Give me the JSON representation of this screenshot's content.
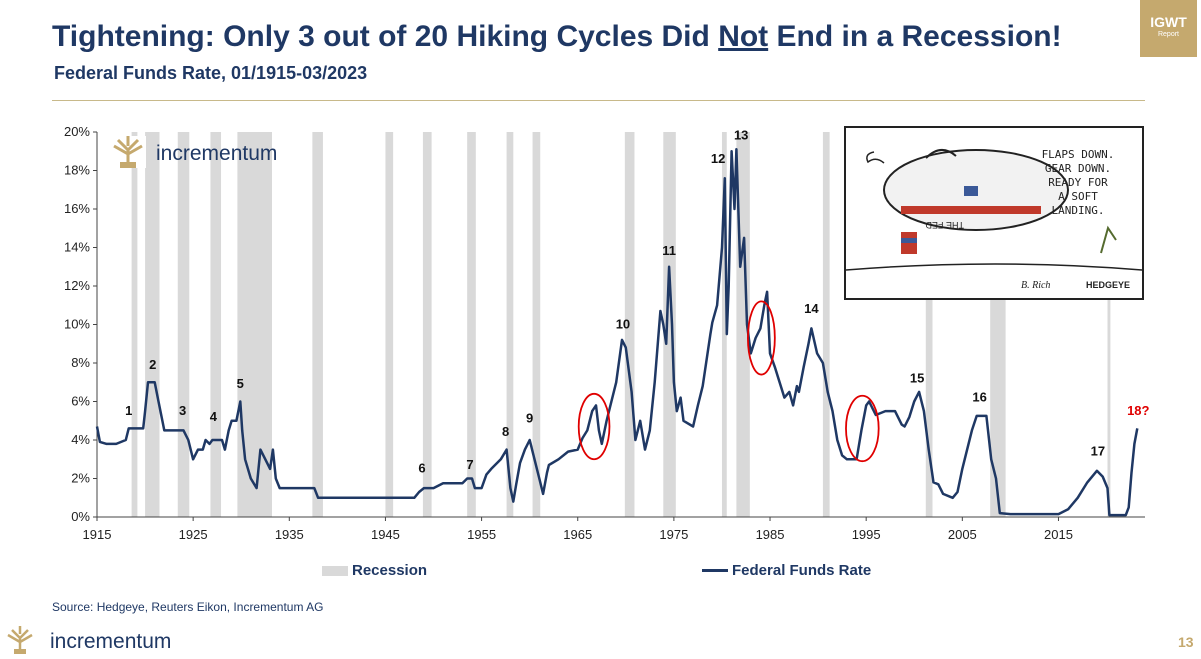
{
  "header": {
    "title_pre": "Tightening: Only 3 out of 20 Hiking Cycles Did ",
    "title_underlined": "Not",
    "title_post": " End in a Recession!",
    "subtitle": "Federal Funds Rate, 01/1915-03/2023"
  },
  "badge": {
    "line1": "IGWT",
    "line2": "Report"
  },
  "source": "Source: Hedgeye, Reuters Eikon, Incrementum AG",
  "brand": {
    "name": "incrementum",
    "chart_logo_text": "incrementum"
  },
  "page_number": "13",
  "colors": {
    "line": "#1f3864",
    "recession": "#d9d9d9",
    "highlight_circle": "#e00000",
    "accent": "#c5a96e",
    "label_red": "#e00000"
  },
  "cartoon": {
    "speech": [
      "FLAPS DOWN.",
      "GEAR DOWN.",
      "READY FOR",
      "A SOFT",
      "LANDING."
    ],
    "plane_text": "THE FED",
    "signature": "B. Rich",
    "credit": "HEDGEYE"
  },
  "chart_data": {
    "type": "line",
    "title": "Federal Funds Rate, 01/1915-03/2023",
    "xlabel": "",
    "ylabel": "",
    "xlim": [
      1915,
      2024
    ],
    "ylim": [
      0,
      20
    ],
    "x_ticks": [
      1915,
      1925,
      1935,
      1945,
      1955,
      1965,
      1975,
      1985,
      1995,
      2005,
      2015
    ],
    "y_ticks": [
      "0%",
      "2%",
      "4%",
      "6%",
      "8%",
      "10%",
      "12%",
      "14%",
      "16%",
      "18%",
      "20%"
    ],
    "legend": [
      "Recession",
      "Federal Funds Rate"
    ],
    "legend_position": "bottom",
    "grid": false,
    "series": [
      {
        "name": "Federal Funds Rate",
        "points": [
          [
            1915.0,
            4.7
          ],
          [
            1915.3,
            3.9
          ],
          [
            1916,
            3.8
          ],
          [
            1917,
            3.8
          ],
          [
            1918,
            4.0
          ],
          [
            1918.3,
            4.6
          ],
          [
            1919,
            4.6
          ],
          [
            1919.8,
            4.6
          ],
          [
            1920,
            5.5
          ],
          [
            1920.3,
            7.0
          ],
          [
            1921,
            7.0
          ],
          [
            1921.4,
            6.0
          ],
          [
            1922,
            4.5
          ],
          [
            1923,
            4.5
          ],
          [
            1924,
            4.5
          ],
          [
            1924.5,
            4.0
          ],
          [
            1925,
            3.0
          ],
          [
            1925.5,
            3.5
          ],
          [
            1926,
            3.5
          ],
          [
            1926.3,
            4.0
          ],
          [
            1926.7,
            3.8
          ],
          [
            1927,
            4.0
          ],
          [
            1928,
            4.0
          ],
          [
            1928.3,
            3.5
          ],
          [
            1928.7,
            4.5
          ],
          [
            1929,
            5.0
          ],
          [
            1929.5,
            5.0
          ],
          [
            1929.9,
            6.0
          ],
          [
            1930.1,
            4.5
          ],
          [
            1930.4,
            3.0
          ],
          [
            1931,
            2.0
          ],
          [
            1931.6,
            1.5
          ],
          [
            1932,
            3.5
          ],
          [
            1932.5,
            3.0
          ],
          [
            1933,
            2.5
          ],
          [
            1933.3,
            3.5
          ],
          [
            1933.6,
            2.0
          ],
          [
            1934,
            1.5
          ],
          [
            1936,
            1.5
          ],
          [
            1937.6,
            1.5
          ],
          [
            1938,
            1.0
          ],
          [
            1948,
            1.0
          ],
          [
            1948.5,
            1.3
          ],
          [
            1949,
            1.5
          ],
          [
            1950,
            1.5
          ],
          [
            1951,
            1.75
          ],
          [
            1953,
            1.75
          ],
          [
            1953.5,
            2.0
          ],
          [
            1954,
            2.0
          ],
          [
            1954.3,
            1.5
          ],
          [
            1955,
            1.5
          ],
          [
            1955.5,
            2.2
          ],
          [
            1956,
            2.5
          ],
          [
            1957,
            3.0
          ],
          [
            1957.6,
            3.5
          ],
          [
            1958,
            1.5
          ],
          [
            1958.3,
            0.8
          ],
          [
            1958.6,
            1.7
          ],
          [
            1959,
            2.8
          ],
          [
            1959.5,
            3.5
          ],
          [
            1960,
            4.0
          ],
          [
            1960.5,
            3.0
          ],
          [
            1961,
            2.0
          ],
          [
            1961.4,
            1.2
          ],
          [
            1961.8,
            2.3
          ],
          [
            1962,
            2.7
          ],
          [
            1963,
            3.0
          ],
          [
            1964,
            3.4
          ],
          [
            1965,
            3.5
          ],
          [
            1965.5,
            4.1
          ],
          [
            1966,
            4.5
          ],
          [
            1966.5,
            5.5
          ],
          [
            1966.9,
            5.8
          ],
          [
            1967.2,
            4.5
          ],
          [
            1967.5,
            3.8
          ],
          [
            1968,
            5.0
          ],
          [
            1968.5,
            6.0
          ],
          [
            1969,
            7.0
          ],
          [
            1969.6,
            9.2
          ],
          [
            1970,
            8.8
          ],
          [
            1970.6,
            6.5
          ],
          [
            1971,
            4.0
          ],
          [
            1971.5,
            5.0
          ],
          [
            1972,
            3.5
          ],
          [
            1972.5,
            4.5
          ],
          [
            1973,
            7.0
          ],
          [
            1973.6,
            10.7
          ],
          [
            1973.9,
            10.0
          ],
          [
            1974.2,
            9.0
          ],
          [
            1974.5,
            13.0
          ],
          [
            1974.8,
            10.0
          ],
          [
            1975,
            7.0
          ],
          [
            1975.3,
            5.5
          ],
          [
            1975.7,
            6.2
          ],
          [
            1976,
            5.0
          ],
          [
            1977,
            4.7
          ],
          [
            1977.5,
            5.8
          ],
          [
            1978,
            6.8
          ],
          [
            1978.8,
            9.5
          ],
          [
            1979,
            10.1
          ],
          [
            1979.5,
            11.0
          ],
          [
            1980,
            14.0
          ],
          [
            1980.3,
            17.6
          ],
          [
            1980.5,
            9.5
          ],
          [
            1980.7,
            12.0
          ],
          [
            1981,
            19.0
          ],
          [
            1981.3,
            16.0
          ],
          [
            1981.5,
            19.1
          ],
          [
            1981.9,
            13.0
          ],
          [
            1982.3,
            14.5
          ],
          [
            1982.6,
            10.0
          ],
          [
            1983,
            8.5
          ],
          [
            1983.5,
            9.3
          ],
          [
            1984,
            9.8
          ],
          [
            1984.4,
            11.0
          ],
          [
            1984.7,
            11.7
          ],
          [
            1985,
            8.5
          ],
          [
            1985.5,
            7.8
          ],
          [
            1986,
            7.0
          ],
          [
            1986.5,
            6.2
          ],
          [
            1987,
            6.5
          ],
          [
            1987.4,
            5.8
          ],
          [
            1987.8,
            6.8
          ],
          [
            1988,
            6.5
          ],
          [
            1988.5,
            7.8
          ],
          [
            1989,
            9.0
          ],
          [
            1989.3,
            9.8
          ],
          [
            1989.9,
            8.5
          ],
          [
            1990.5,
            8.0
          ],
          [
            1991,
            6.5
          ],
          [
            1991.5,
            5.5
          ],
          [
            1992,
            4.0
          ],
          [
            1992.5,
            3.2
          ],
          [
            1993,
            3.0
          ],
          [
            1994,
            3.0
          ],
          [
            1994.5,
            4.5
          ],
          [
            1995,
            5.8
          ],
          [
            1995.3,
            6.0
          ],
          [
            1996,
            5.3
          ],
          [
            1997,
            5.5
          ],
          [
            1998,
            5.5
          ],
          [
            1998.7,
            4.8
          ],
          [
            1999,
            4.7
          ],
          [
            1999.5,
            5.2
          ],
          [
            2000,
            6.0
          ],
          [
            2000.5,
            6.5
          ],
          [
            2001,
            5.5
          ],
          [
            2001.5,
            3.5
          ],
          [
            2002,
            1.8
          ],
          [
            2002.5,
            1.7
          ],
          [
            2003,
            1.2
          ],
          [
            2004,
            1.0
          ],
          [
            2004.5,
            1.3
          ],
          [
            2005,
            2.5
          ],
          [
            2006,
            4.5
          ],
          [
            2006.5,
            5.25
          ],
          [
            2007.5,
            5.25
          ],
          [
            2008,
            3.0
          ],
          [
            2008.5,
            2.0
          ],
          [
            2008.9,
            0.2
          ],
          [
            2010,
            0.15
          ],
          [
            2015,
            0.15
          ],
          [
            2016,
            0.4
          ],
          [
            2017,
            1.0
          ],
          [
            2018,
            1.8
          ],
          [
            2019,
            2.4
          ],
          [
            2019.6,
            2.1
          ],
          [
            2020.1,
            1.5
          ],
          [
            2020.3,
            0.1
          ],
          [
            2021.5,
            0.1
          ],
          [
            2022,
            0.1
          ],
          [
            2022.3,
            0.5
          ],
          [
            2022.6,
            2.3
          ],
          [
            2022.9,
            3.8
          ],
          [
            2023.2,
            4.6
          ]
        ]
      }
    ],
    "recessions": [
      [
        1918.6,
        1919.2
      ],
      [
        1920.0,
        1921.5
      ],
      [
        1923.4,
        1924.6
      ],
      [
        1926.8,
        1927.9
      ],
      [
        1929.6,
        1933.2
      ],
      [
        1937.4,
        1938.5
      ],
      [
        1945.0,
        1945.8
      ],
      [
        1948.9,
        1949.8
      ],
      [
        1953.5,
        1954.4
      ],
      [
        1957.6,
        1958.3
      ],
      [
        1960.3,
        1961.1
      ],
      [
        1969.9,
        1970.9
      ],
      [
        1973.9,
        1975.2
      ],
      [
        1980.0,
        1980.5
      ],
      [
        1981.5,
        1982.9
      ],
      [
        1990.5,
        1991.2
      ],
      [
        2001.2,
        2001.9
      ],
      [
        2007.9,
        2009.5
      ],
      [
        2020.1,
        2020.4
      ]
    ],
    "cycle_labels": [
      {
        "label": "1",
        "x": 1918.3,
        "y": 5.3
      },
      {
        "label": "2",
        "x": 1920.8,
        "y": 7.7
      },
      {
        "label": "3",
        "x": 1923.9,
        "y": 5.3
      },
      {
        "label": "4",
        "x": 1927.1,
        "y": 5.0
      },
      {
        "label": "5",
        "x": 1929.9,
        "y": 6.7
      },
      {
        "label": "6",
        "x": 1948.8,
        "y": 2.3
      },
      {
        "label": "7",
        "x": 1953.8,
        "y": 2.5
      },
      {
        "label": "8",
        "x": 1957.5,
        "y": 4.2
      },
      {
        "label": "9",
        "x": 1960.0,
        "y": 4.9
      },
      {
        "label": "10",
        "x": 1969.7,
        "y": 9.8
      },
      {
        "label": "11",
        "x": 1974.5,
        "y": 13.6
      },
      {
        "label": "12",
        "x": 1979.6,
        "y": 18.4
      },
      {
        "label": "13",
        "x": 1982.0,
        "y": 19.6
      },
      {
        "label": "14",
        "x": 1989.3,
        "y": 10.6
      },
      {
        "label": "15",
        "x": 2000.3,
        "y": 7.0
      },
      {
        "label": "16",
        "x": 2006.8,
        "y": 6.0
      },
      {
        "label": "17",
        "x": 2019.1,
        "y": 3.2
      },
      {
        "label": "18?",
        "x": 2023.3,
        "y": 5.3,
        "highlight": true
      }
    ],
    "highlight_circles": [
      {
        "x": 1966.7,
        "y": 4.7,
        "rx_years": 1.6,
        "ry_pct": 1.7
      },
      {
        "x": 1984.1,
        "y": 9.3,
        "rx_years": 1.4,
        "ry_pct": 1.9
      },
      {
        "x": 1994.6,
        "y": 4.6,
        "rx_years": 1.7,
        "ry_pct": 1.7
      }
    ]
  }
}
